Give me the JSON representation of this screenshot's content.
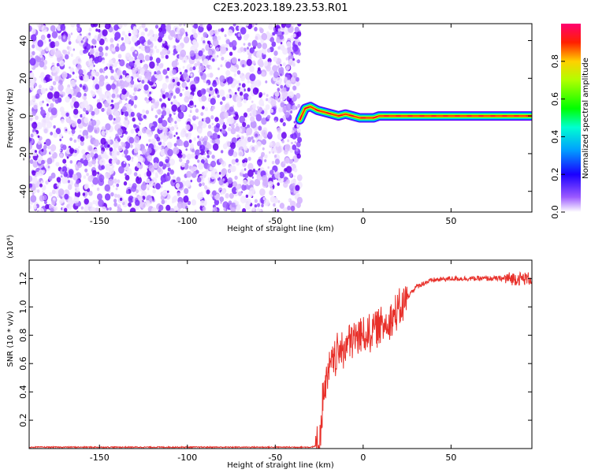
{
  "figure": {
    "title": "C2E3.2023.189.23.53.R01"
  },
  "chart_data": [
    {
      "type": "heatmap",
      "xlabel": "Height of straight line (km)",
      "ylabel": "Frequency (Hz)",
      "xlim": [
        -190,
        96
      ],
      "ylim": [
        -51,
        49
      ],
      "xticks": [
        -150,
        -100,
        -50,
        0,
        50
      ],
      "yticks": [
        -40,
        -20,
        0,
        20,
        40
      ],
      "noise_region_x": [
        -190,
        -36
      ],
      "carrier_trace": [
        {
          "x": -36,
          "y": -2
        },
        {
          "x": -33,
          "y": 4
        },
        {
          "x": -30,
          "y": 5
        },
        {
          "x": -26,
          "y": 3
        },
        {
          "x": -22,
          "y": 2
        },
        {
          "x": -18,
          "y": 1
        },
        {
          "x": -14,
          "y": 0
        },
        {
          "x": -10,
          "y": 1
        },
        {
          "x": -6,
          "y": 0
        },
        {
          "x": -2,
          "y": -1
        },
        {
          "x": 2,
          "y": -1
        },
        {
          "x": 6,
          "y": -1
        },
        {
          "x": 9,
          "y": 0
        },
        {
          "x": 12,
          "y": 0
        },
        {
          "x": 96,
          "y": 0
        }
      ],
      "colorbar": {
        "label": "Normalized spectral amplitude",
        "ticks": [
          "0.0",
          "0.2",
          "0.4",
          "0.6",
          "0.8"
        ],
        "range": [
          0,
          1
        ],
        "colors": [
          "#ffffff",
          "#7a00ff",
          "#0000ff",
          "#00ffff",
          "#00ff00",
          "#ffff00",
          "#ff0000",
          "#ff0080"
        ]
      }
    },
    {
      "type": "line",
      "xlabel": "Height of straight line (km)",
      "ylabel": "SNR (10 * v/v)",
      "scale_label": "(x10⁴)",
      "xlim": [
        -190,
        96
      ],
      "ylim": [
        0,
        1.33
      ],
      "xticks": [
        -150,
        -100,
        -50,
        0,
        50
      ],
      "yticks": [
        "0.2",
        "0.4",
        "0.6",
        "0.8",
        "1.0",
        "1.2"
      ],
      "color": "#e8302a",
      "series": [
        {
          "x": [
            -190,
            -150,
            -100,
            -60,
            -30,
            -26,
            -25,
            -24,
            -23,
            -22,
            -20,
            -18,
            -15,
            -12,
            -8,
            -4,
            0,
            4,
            8,
            12,
            16,
            20,
            24,
            27,
            30,
            35,
            40,
            50,
            60,
            70,
            80,
            90,
            96
          ],
          "y": [
            0.01,
            0.01,
            0.01,
            0.01,
            0.01,
            0.02,
            0.05,
            0.15,
            0.35,
            0.42,
            0.5,
            0.6,
            0.66,
            0.7,
            0.76,
            0.78,
            0.8,
            0.82,
            0.86,
            0.88,
            0.92,
            0.96,
            1.05,
            1.1,
            1.14,
            1.17,
            1.19,
            1.2,
            1.2,
            1.2,
            1.2,
            1.2,
            1.2
          ]
        }
      ]
    }
  ]
}
